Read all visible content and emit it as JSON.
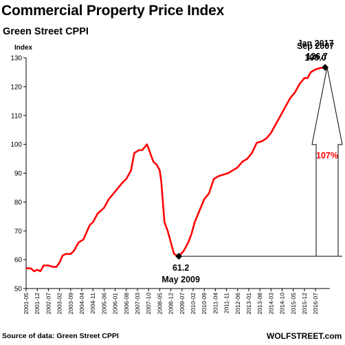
{
  "chart_data": {
    "type": "line",
    "title": "Commercial Property Price Index",
    "subtitle": "Green Street CPPI",
    "ylabel": "Index",
    "xlabel": "",
    "ylim": [
      50,
      130
    ],
    "yticks": [
      50,
      60,
      70,
      80,
      90,
      100,
      110,
      120,
      130
    ],
    "grid": false,
    "line_color": "#ff0000",
    "x_tick_labels": [
      "2001-05",
      "2001-12",
      "2002-07",
      "2003-02",
      "2003-09",
      "2004-04",
      "2004-11",
      "2005-06",
      "2006-01",
      "2006-08",
      "2007-03",
      "2007-10",
      "2008-05",
      "2008-12",
      "2009-07",
      "2010-02",
      "2010-09",
      "2011-04",
      "2011-11",
      "2012-06",
      "2013-01",
      "2013-08",
      "2014-03",
      "2014-10",
      "2015-05",
      "2015-12",
      "2016-07"
    ],
    "series": [
      {
        "values": [
          [
            "2001-05",
            57
          ],
          [
            "2001-08",
            57
          ],
          [
            "2001-10",
            56
          ],
          [
            "2001-12",
            56.5
          ],
          [
            "2002-02",
            56
          ],
          [
            "2002-04",
            58
          ],
          [
            "2002-07",
            58
          ],
          [
            "2002-10",
            57.5
          ],
          [
            "2002-12",
            57.5
          ],
          [
            "2003-02",
            59
          ],
          [
            "2003-04",
            61.5
          ],
          [
            "2003-06",
            62
          ],
          [
            "2003-09",
            62
          ],
          [
            "2003-11",
            63
          ],
          [
            "2004-02",
            66
          ],
          [
            "2004-05",
            67
          ],
          [
            "2004-09",
            72
          ],
          [
            "2004-11",
            73
          ],
          [
            "2005-02",
            76
          ],
          [
            "2005-06",
            78
          ],
          [
            "2005-09",
            81
          ],
          [
            "2005-12",
            83
          ],
          [
            "2006-03",
            85
          ],
          [
            "2006-06",
            87
          ],
          [
            "2006-08",
            88
          ],
          [
            "2006-11",
            91
          ],
          [
            "2007-01",
            97
          ],
          [
            "2007-04",
            98
          ],
          [
            "2007-06",
            98
          ],
          [
            "2007-09",
            100
          ],
          [
            "2007-11",
            97
          ],
          [
            "2008-01",
            94
          ],
          [
            "2008-03",
            93
          ],
          [
            "2008-05",
            91
          ],
          [
            "2008-06",
            87
          ],
          [
            "2008-08",
            73
          ],
          [
            "2008-10",
            70
          ],
          [
            "2008-12",
            66
          ],
          [
            "2009-02",
            62
          ],
          [
            "2009-05",
            61.2
          ],
          [
            "2009-08",
            63
          ],
          [
            "2009-11",
            66
          ],
          [
            "2010-01",
            69
          ],
          [
            "2010-03",
            73
          ],
          [
            "2010-06",
            77
          ],
          [
            "2010-09",
            81
          ],
          [
            "2010-12",
            83
          ],
          [
            "2011-03",
            88
          ],
          [
            "2011-06",
            89
          ],
          [
            "2011-09",
            89.5
          ],
          [
            "2011-12",
            90
          ],
          [
            "2012-03",
            91
          ],
          [
            "2012-06",
            92
          ],
          [
            "2012-09",
            94
          ],
          [
            "2012-12",
            95
          ],
          [
            "2013-03",
            97
          ],
          [
            "2013-06",
            100.5
          ],
          [
            "2013-09",
            101
          ],
          [
            "2013-12",
            102
          ],
          [
            "2014-03",
            104
          ],
          [
            "2014-06",
            107
          ],
          [
            "2014-09",
            110
          ],
          [
            "2014-12",
            113
          ],
          [
            "2015-03",
            116
          ],
          [
            "2015-06",
            118
          ],
          [
            "2015-09",
            121
          ],
          [
            "2015-12",
            123
          ],
          [
            "2016-02",
            123
          ],
          [
            "2016-04",
            125
          ],
          [
            "2016-07",
            126
          ],
          [
            "2016-10",
            126.5
          ],
          [
            "2017-01",
            126.7
          ]
        ]
      }
    ],
    "annotations": {
      "peak_date": "Sep 2007",
      "peak_value": "100.0",
      "trough_value": "61.2",
      "trough_date": "May 2009",
      "latest_date": "Jan 2017",
      "latest_value": "126.7",
      "increase": "107%"
    },
    "source": "Source of data: Green Street CPPI",
    "brand": "WOLFSTREET.com"
  }
}
